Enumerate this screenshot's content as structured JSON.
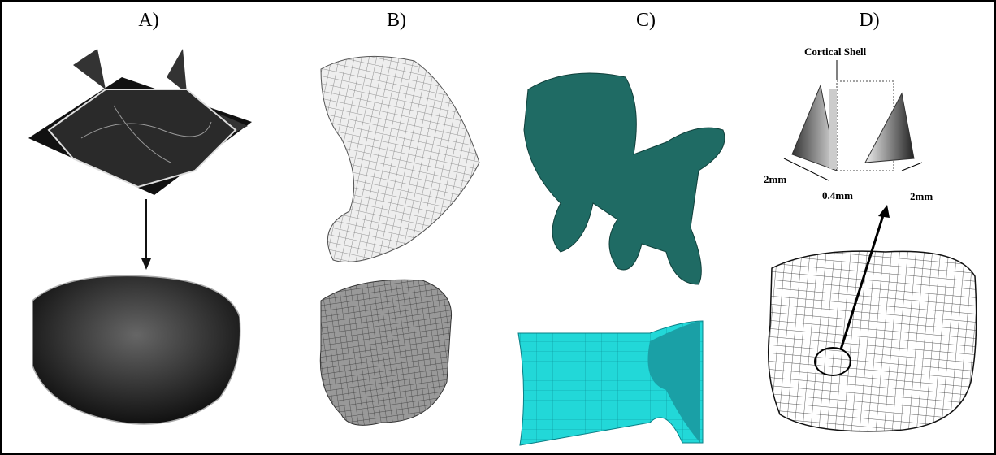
{
  "panels": [
    {
      "label": "A)"
    },
    {
      "label": "B)"
    },
    {
      "label": "C)"
    },
    {
      "label": "D)",
      "annotations": {
        "title": "Cortical Shell",
        "left_size": "2mm",
        "gap": "0.4mm",
        "right_size": "2mm"
      }
    }
  ]
}
